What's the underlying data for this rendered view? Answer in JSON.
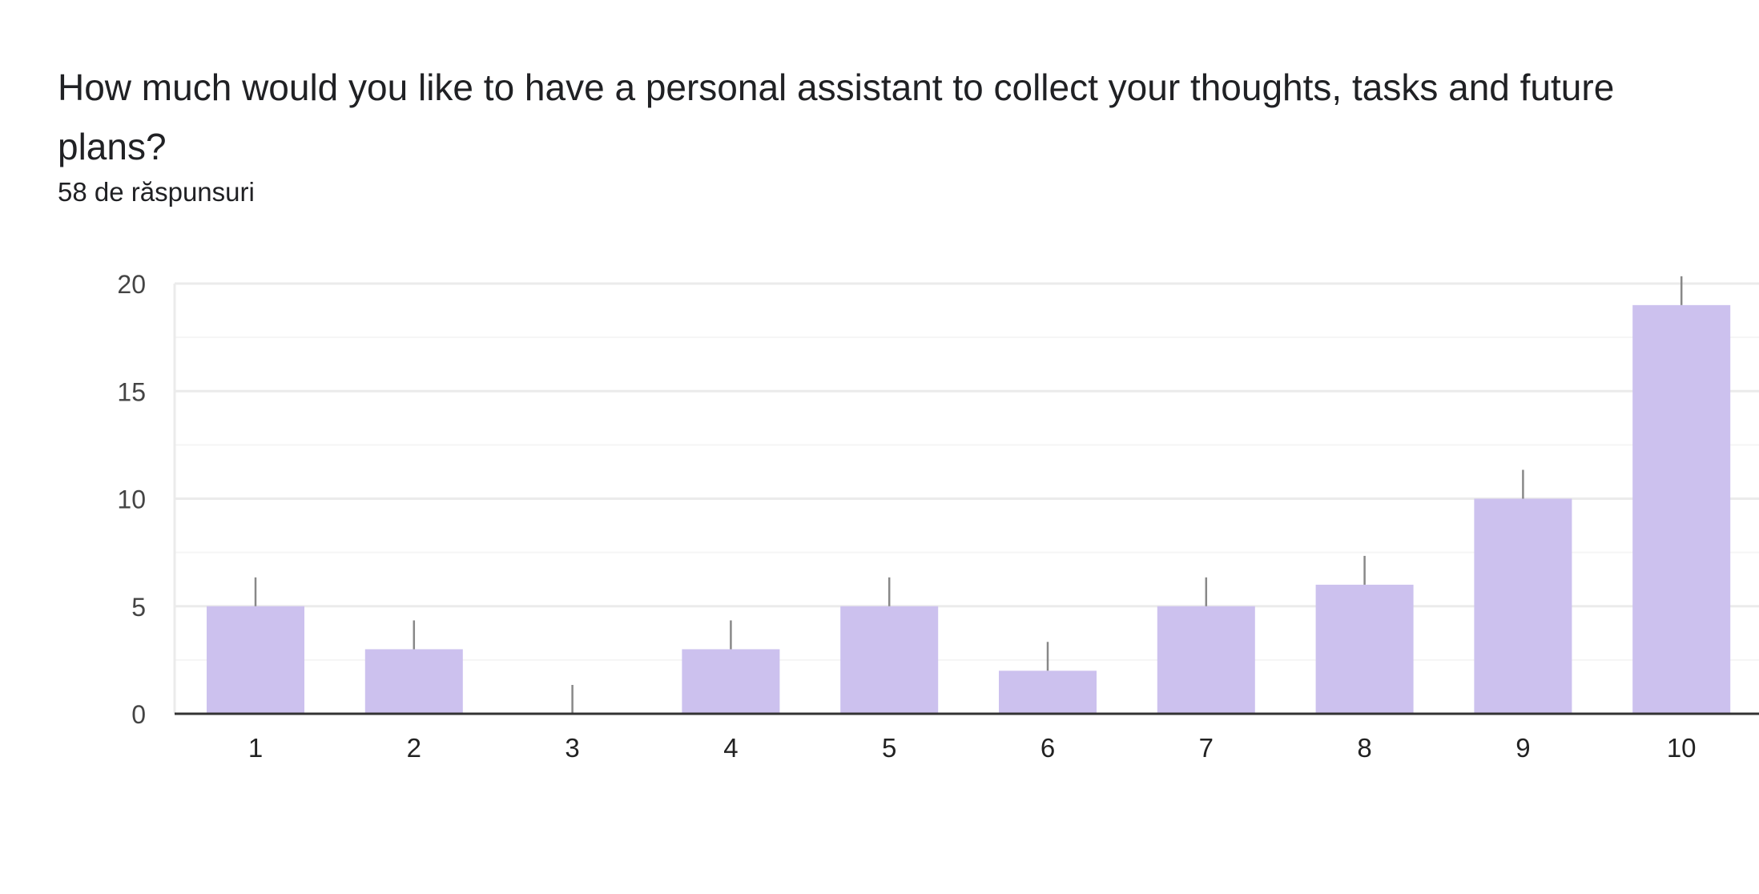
{
  "question": {
    "title": "How much would you like to have a personal assistant to collect your thoughts, tasks and future plans?",
    "response_count": "58 de răspunsuri"
  },
  "colors": {
    "bar": "#ccc1ee",
    "axis": "#333333",
    "grid_major": "#ebebeb",
    "grid_minor": "#f5f5f5",
    "whisker": "#888888",
    "tick_text": "#444444"
  },
  "chart_data": {
    "type": "bar",
    "categories": [
      "1",
      "2",
      "3",
      "4",
      "5",
      "6",
      "7",
      "8",
      "9",
      "10"
    ],
    "values": [
      5,
      3,
      0,
      3,
      5,
      2,
      5,
      6,
      10,
      19
    ],
    "ylim": [
      0,
      20
    ],
    "yticks": [
      0,
      5,
      10,
      15,
      20
    ],
    "ytick_labels": [
      "0",
      "5",
      "10",
      "15",
      "20"
    ],
    "error_bars": true,
    "grid": true,
    "title": "",
    "xlabel": "",
    "ylabel": ""
  }
}
